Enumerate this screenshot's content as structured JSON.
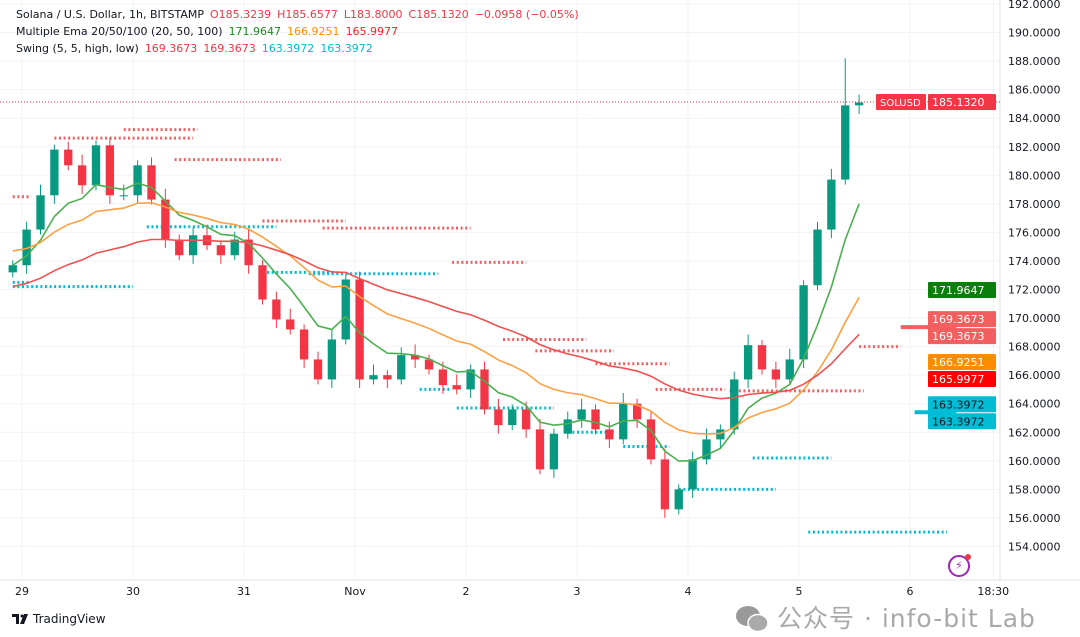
{
  "header": {
    "symbol": "Solana / U.S. Dollar, 1h, BITSTAMP",
    "o": "O185.3239",
    "h": "H185.6577",
    "l": "L183.8000",
    "c": "C185.1320",
    "change": "−0.0958 (−0.05%)"
  },
  "ema_legend": {
    "label": "Multiple Ema 20/50/100 (20, 50, 100)",
    "v20": "171.9647",
    "v50": "166.9251",
    "v100": "165.9977"
  },
  "swing_legend": {
    "label": "Swing (5, 5, high, low)",
    "v1": "169.3673",
    "v2": "169.3673",
    "v3": "163.3972",
    "v4": "163.3972"
  },
  "price_labels": [
    {
      "text": "SOLUSD",
      "value": "185.1320",
      "price": 185.132,
      "color": "#f23645"
    },
    {
      "text": "",
      "value": "171.9647",
      "price": 171.9647,
      "color": "#0b7f0b"
    },
    {
      "text": "",
      "value": "169.3673",
      "price": 169.3673,
      "color": "#f25f5f",
      "off": -8
    },
    {
      "text": "",
      "value": "169.3673",
      "price": 169.3673,
      "color": "#f25f5f",
      "off": 8
    },
    {
      "text": "",
      "value": "166.9251",
      "price": 166.9251,
      "color": "#ff8c00"
    },
    {
      "text": "",
      "value": "165.9977",
      "price": 165.9977,
      "color": "#ff0000"
    },
    {
      "text": "",
      "value": "163.3972",
      "price": 163.3972,
      "color": "#00bcd4",
      "off": -8,
      "dark": true
    },
    {
      "text": "",
      "value": "163.3972",
      "price": 163.3972,
      "color": "#00bcd4",
      "off": 8,
      "dark": true
    }
  ],
  "branding": {
    "logo": "TradingView",
    "watermark": "公众号 · info-bit Lab"
  },
  "chart_data": {
    "type": "candlestick",
    "title": "Solana / U.S. Dollar, 1h, BITSTAMP",
    "ylim": [
      152,
      192
    ],
    "yticks": [
      "154.0000",
      "156.0000",
      "158.0000",
      "160.0000",
      "162.0000",
      "164.0000",
      "166.0000",
      "168.0000",
      "170.0000",
      "172.0000",
      "174.0000",
      "176.0000",
      "178.0000",
      "180.0000",
      "182.0000",
      "184.0000",
      "186.0000",
      "188.0000",
      "190.0000",
      "192.0000"
    ],
    "xticks": [
      {
        "label": "29",
        "hour": 0
      },
      {
        "label": "30",
        "hour": 24
      },
      {
        "label": "31",
        "hour": 48
      },
      {
        "label": "Nov",
        "hour": 72
      },
      {
        "label": "2",
        "hour": 96
      },
      {
        "label": "3",
        "hour": 120
      },
      {
        "label": "4",
        "hour": 144
      },
      {
        "label": "5",
        "hour": 168
      },
      {
        "label": "6",
        "hour": 192
      },
      {
        "label": "18:30",
        "hour": 210
      }
    ],
    "start_hour": -2,
    "interval_hours": 3,
    "closes": [
      173.7,
      176.2,
      178.6,
      181.8,
      180.7,
      179.3,
      182.1,
      178.6,
      178.6,
      180.7,
      178.3,
      175.5,
      174.4,
      175.8,
      175.1,
      174.4,
      175.5,
      173.7,
      171.3,
      169.9,
      169.2,
      167.1,
      165.7,
      168.5,
      172.7,
      165.7,
      166.0,
      165.7,
      167.4,
      167.1,
      166.4,
      165.3,
      165.0,
      166.4,
      163.6,
      162.5,
      163.6,
      162.2,
      159.4,
      161.9,
      162.9,
      163.6,
      162.2,
      161.5,
      164.0,
      162.9,
      160.1,
      156.6,
      158.0,
      160.1,
      161.5,
      162.2,
      165.7,
      168.1,
      166.4,
      165.7,
      167.1,
      172.3,
      176.2,
      179.7,
      184.9,
      185.1
    ],
    "ema_periods": [
      20,
      50,
      100
    ],
    "ema_colors": [
      "#4caf50",
      "#ffa040",
      "#f05050"
    ],
    "swing_highs": [
      [
        178.5,
        -2,
        2
      ],
      [
        182.6,
        7,
        37
      ],
      [
        183.2,
        22,
        38
      ],
      [
        181.1,
        33,
        56
      ],
      [
        176.8,
        52,
        70
      ],
      [
        176.3,
        65,
        97
      ],
      [
        173.9,
        93,
        109
      ],
      [
        168.5,
        104,
        122
      ],
      [
        167.7,
        111,
        128
      ],
      [
        166.8,
        124,
        140
      ],
      [
        165.0,
        137,
        152
      ],
      [
        164.9,
        153,
        182
      ],
      [
        168.0,
        181,
        190
      ],
      [
        169.3673,
        190,
        202
      ]
    ],
    "swing_lows": [
      [
        172.5,
        -2,
        2
      ],
      [
        172.2,
        -2,
        24
      ],
      [
        176.4,
        27,
        55
      ],
      [
        173.2,
        52,
        68
      ],
      [
        173.1,
        62,
        90
      ],
      [
        165.0,
        86,
        93
      ],
      [
        163.7,
        94,
        115
      ],
      [
        162.0,
        118,
        128
      ],
      [
        161.0,
        130,
        140
      ],
      [
        158.0,
        142,
        163
      ],
      [
        160.2,
        158,
        175
      ],
      [
        155.0,
        170,
        200
      ],
      [
        163.3972,
        193,
        202
      ]
    ]
  }
}
